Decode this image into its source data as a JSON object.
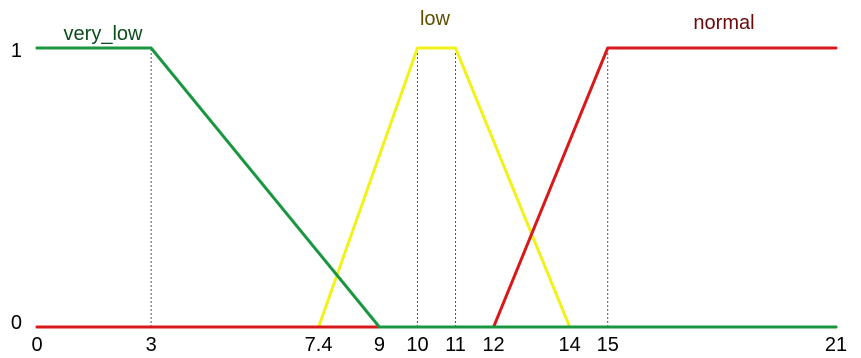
{
  "chart_data": {
    "type": "line",
    "title": "",
    "xlabel": "",
    "ylabel": "",
    "xlim": [
      0,
      21
    ],
    "ylim": [
      0,
      1
    ],
    "x_ticks": [
      0,
      3,
      7.4,
      9,
      10,
      11,
      12,
      14,
      15,
      21
    ],
    "x_tick_labels": [
      "0",
      "3",
      "7.4",
      "9",
      "10",
      "11",
      "12",
      "14",
      "15",
      "21"
    ],
    "y_ticks": [
      0,
      1
    ],
    "y_tick_labels": [
      "0",
      "1"
    ],
    "grid": false,
    "guides": [
      {
        "x": 3,
        "y": 1
      },
      {
        "x": 10,
        "y": 1
      },
      {
        "x": 11,
        "y": 1
      },
      {
        "x": 15,
        "y": 1
      }
    ],
    "series": [
      {
        "name": "very_low",
        "color": "#1a9641",
        "label_color": "#0b4d1c",
        "points": [
          [
            0,
            1
          ],
          [
            3,
            1
          ],
          [
            9,
            0
          ],
          [
            21,
            0
          ]
        ]
      },
      {
        "name": "low",
        "color": "#f2f21b",
        "label_color": "#5c5100",
        "points": [
          [
            0,
            0
          ],
          [
            7.4,
            0
          ],
          [
            10,
            1
          ],
          [
            11,
            1
          ],
          [
            14,
            0
          ],
          [
            21,
            0
          ]
        ]
      },
      {
        "name": "normal",
        "color": "#d7191c",
        "label_color": "#6b0a0a",
        "points": [
          [
            0,
            0
          ],
          [
            12,
            0
          ],
          [
            15,
            1
          ],
          [
            21,
            1
          ]
        ]
      }
    ]
  }
}
